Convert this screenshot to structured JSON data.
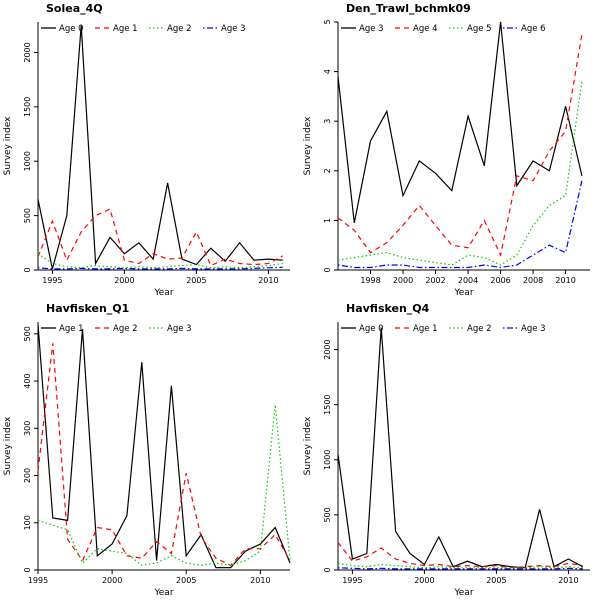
{
  "page": {
    "background": "#ffffff"
  },
  "style": {
    "axis_color": "#000000",
    "series_colors": {
      "black": "#000000",
      "red": "#ff0000",
      "green": "#00cd00",
      "blue": "#0000ff"
    }
  },
  "chart_data": [
    {
      "type": "line",
      "title": "Solea_4Q",
      "xlabel": "Year",
      "ylabel": "Survey index",
      "xlim": [
        1994,
        2011.5
      ],
      "ylim": [
        0,
        2280
      ],
      "xticks": [
        1995,
        2000,
        2005,
        2010
      ],
      "yticks": [
        0,
        500,
        1000,
        1500,
        2000
      ],
      "legend_position": "top-left-horizontal",
      "x": [
        1994,
        1995,
        1996,
        1997,
        1998,
        1999,
        2000,
        2001,
        2002,
        2003,
        2004,
        2005,
        2006,
        2007,
        2008,
        2009,
        2010,
        2011
      ],
      "series": [
        {
          "name": "Age 0",
          "color": "#000000",
          "lty": "solid",
          "values": [
            650,
            10,
            500,
            2250,
            60,
            300,
            150,
            250,
            100,
            800,
            100,
            50,
            200,
            80,
            250,
            90,
            100,
            90
          ]
        },
        {
          "name": "Age 1",
          "color": "#ff0000",
          "lty": "dashed",
          "values": [
            120,
            450,
            90,
            350,
            500,
            560,
            90,
            60,
            150,
            100,
            110,
            350,
            40,
            100,
            60,
            50,
            60,
            130
          ]
        },
        {
          "name": "Age 2",
          "color": "#00cd00",
          "lty": "dotted",
          "values": [
            150,
            60,
            30,
            20,
            40,
            30,
            20,
            30,
            20,
            30,
            40,
            50,
            20,
            30,
            20,
            30,
            40,
            60
          ]
        },
        {
          "name": "Age 3",
          "color": "#0000ff",
          "lty": "dotdash",
          "values": [
            20,
            10,
            10,
            15,
            10,
            10,
            15,
            10,
            10,
            10,
            15,
            10,
            10,
            10,
            10,
            15,
            20,
            25
          ]
        }
      ]
    },
    {
      "type": "line",
      "title": "Den_Trawl_bchmk09",
      "xlabel": "Year",
      "ylabel": "Survey index",
      "xlim": [
        1996,
        2011.5
      ],
      "ylim": [
        0,
        5
      ],
      "xticks": [
        1998,
        2000,
        2002,
        2004,
        2006,
        2008,
        2010
      ],
      "yticks": [
        0,
        1,
        2,
        3,
        4,
        5
      ],
      "legend_position": "top-left-horizontal",
      "x": [
        1996,
        1997,
        1998,
        1999,
        2000,
        2001,
        2002,
        2003,
        2004,
        2005,
        2006,
        2007,
        2008,
        2009,
        2010,
        2011
      ],
      "series": [
        {
          "name": "Age 3",
          "color": "#000000",
          "lty": "solid",
          "values": [
            3.9,
            0.95,
            2.6,
            3.2,
            1.5,
            2.2,
            1.95,
            1.6,
            3.1,
            2.1,
            5.0,
            1.7,
            2.2,
            2.0,
            3.3,
            1.9
          ]
        },
        {
          "name": "Age 4",
          "color": "#ff0000",
          "lty": "dashed",
          "values": [
            1.05,
            0.8,
            0.35,
            0.55,
            0.9,
            1.3,
            0.9,
            0.5,
            0.45,
            1.0,
            0.3,
            1.9,
            1.8,
            2.4,
            2.8,
            4.75
          ]
        },
        {
          "name": "Age 5",
          "color": "#00cd00",
          "lty": "dotted",
          "values": [
            0.2,
            0.25,
            0.3,
            0.35,
            0.25,
            0.2,
            0.15,
            0.1,
            0.3,
            0.25,
            0.1,
            0.3,
            0.9,
            1.3,
            1.5,
            3.8
          ]
        },
        {
          "name": "Age 6",
          "color": "#0000ff",
          "lty": "dotdash",
          "values": [
            0.1,
            0.05,
            0.05,
            0.1,
            0.1,
            0.05,
            0.05,
            0.05,
            0.05,
            0.1,
            0.05,
            0.1,
            0.3,
            0.5,
            0.35,
            1.8
          ]
        }
      ]
    },
    {
      "type": "line",
      "title": "Havfisken_Q1",
      "xlabel": "Year",
      "ylabel": "Survey index",
      "xlim": [
        1995,
        2012
      ],
      "ylim": [
        0,
        525
      ],
      "xticks": [
        1995,
        2000,
        2005,
        2010
      ],
      "yticks": [
        0,
        100,
        200,
        300,
        400,
        500
      ],
      "legend_position": "top-left-horizontal",
      "x": [
        1995,
        1996,
        1997,
        1998,
        1999,
        2000,
        2001,
        2002,
        2003,
        2004,
        2005,
        2006,
        2007,
        2008,
        2009,
        2010,
        2011,
        2012
      ],
      "series": [
        {
          "name": "Age 1",
          "color": "#000000",
          "lty": "solid",
          "values": [
            520,
            110,
            105,
            510,
            30,
            55,
            115,
            440,
            20,
            390,
            30,
            75,
            5,
            5,
            40,
            55,
            90,
            15
          ]
        },
        {
          "name": "Age 2",
          "color": "#ff0000",
          "lty": "dashed",
          "values": [
            210,
            480,
            65,
            20,
            90,
            85,
            30,
            25,
            60,
            35,
            205,
            70,
            25,
            10,
            45,
            45,
            75,
            20
          ]
        },
        {
          "name": "Age 3",
          "color": "#00cd00",
          "lty": "dotted",
          "values": [
            105,
            95,
            85,
            15,
            45,
            40,
            35,
            10,
            15,
            30,
            15,
            10,
            15,
            10,
            20,
            40,
            350,
            20
          ]
        }
      ]
    },
    {
      "type": "line",
      "title": "Havfisken_Q4",
      "xlabel": "Year",
      "ylabel": "Survey index",
      "xlim": [
        1994,
        2011.5
      ],
      "ylim": [
        0,
        2250
      ],
      "xticks": [
        1995,
        2000,
        2005,
        2010
      ],
      "yticks": [
        0,
        500,
        1000,
        1500,
        2000
      ],
      "legend_position": "top-left-horizontal",
      "x": [
        1994,
        1995,
        1996,
        1997,
        1998,
        1999,
        2000,
        2001,
        2002,
        2003,
        2004,
        2005,
        2006,
        2007,
        2008,
        2009,
        2010,
        2011
      ],
      "series": [
        {
          "name": "Age 0",
          "color": "#000000",
          "lty": "solid",
          "values": [
            1050,
            100,
            150,
            2200,
            350,
            150,
            50,
            300,
            30,
            80,
            30,
            50,
            30,
            20,
            550,
            30,
            100,
            30
          ]
        },
        {
          "name": "Age 1",
          "color": "#ff0000",
          "lty": "dashed",
          "values": [
            250,
            80,
            120,
            200,
            100,
            60,
            40,
            50,
            30,
            40,
            30,
            40,
            20,
            30,
            40,
            30,
            60,
            40
          ]
        },
        {
          "name": "Age 2",
          "color": "#00cd00",
          "lty": "dotted",
          "values": [
            60,
            40,
            30,
            50,
            40,
            30,
            20,
            30,
            20,
            20,
            20,
            20,
            20,
            20,
            30,
            20,
            30,
            20
          ]
        },
        {
          "name": "Age 3",
          "color": "#0000ff",
          "lty": "dotdash",
          "values": [
            20,
            15,
            10,
            15,
            10,
            10,
            10,
            10,
            10,
            10,
            10,
            10,
            10,
            10,
            10,
            10,
            15,
            10
          ]
        }
      ]
    }
  ]
}
